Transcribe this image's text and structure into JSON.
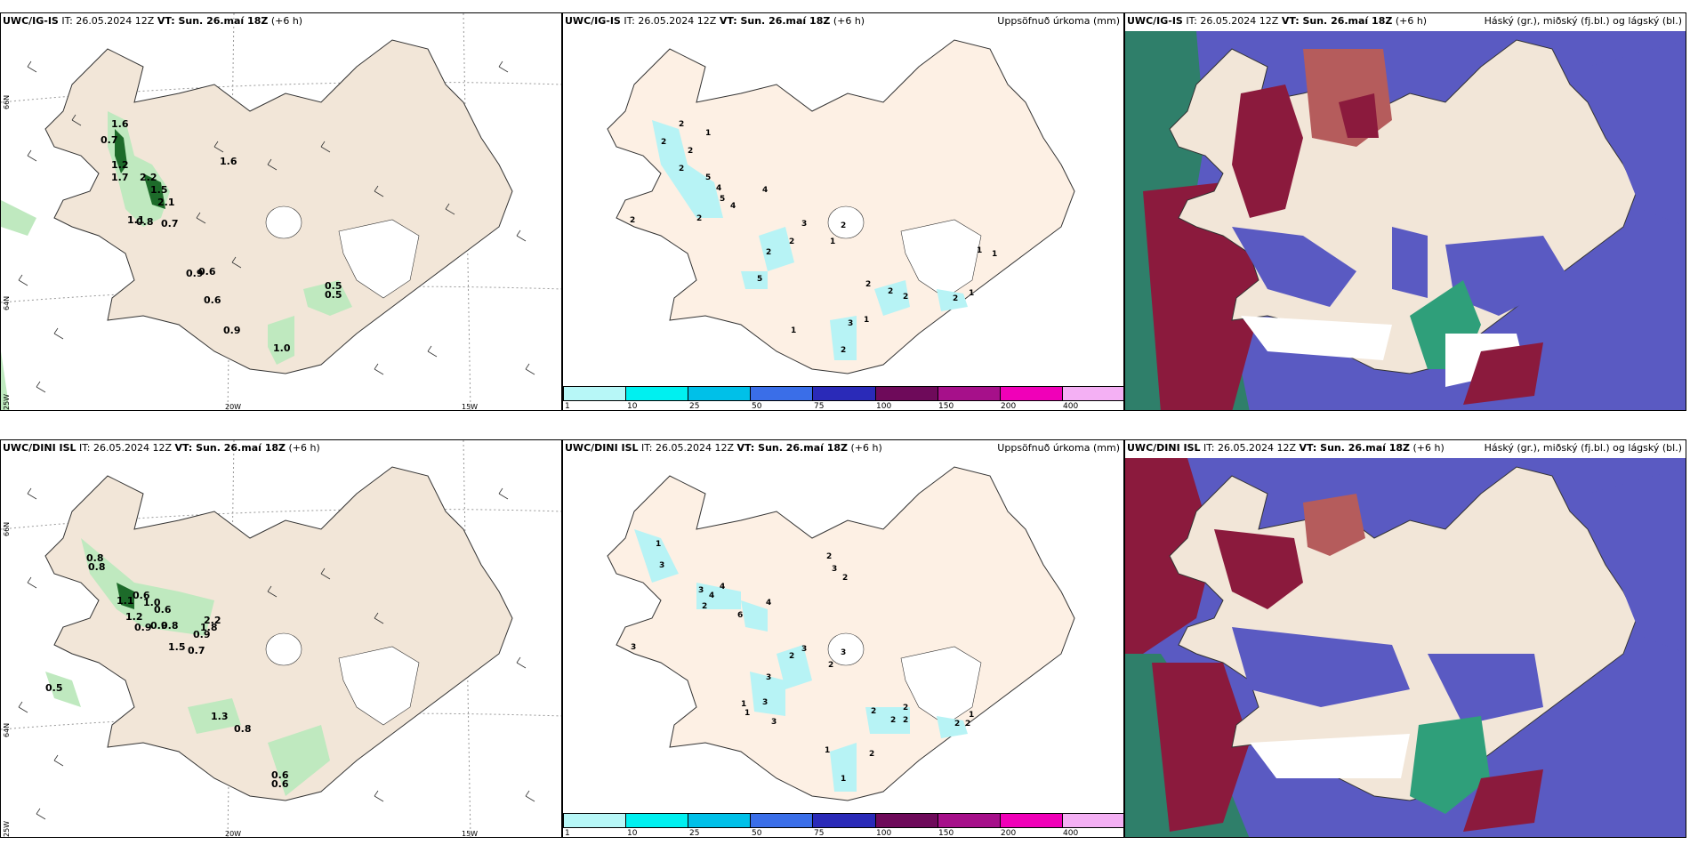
{
  "colors": {
    "land": "#f2e6d8",
    "land2": "#fdf0e4",
    "sea": "#ffffff",
    "precip": "#b7f3f5",
    "cloud_low": "#5a5ac2",
    "cloud_high": "#8b1a3d",
    "cloud_mid": "#b55c5c",
    "green_dark": "#1d6b2a",
    "green_light": "#bfe9bf",
    "teal": "#2f7f6a"
  },
  "rows": [
    {
      "model": "UWC/IG-IS",
      "it_label": "IT: 26.05.2024 12Z",
      "vt_label": "VT: Sun. 26.maí 18Z",
      "offset": "(+6 h)",
      "wind_labels": [
        "1.6",
        "0.7",
        "1.2",
        "1.7",
        "2.2",
        "1.5",
        "2.1",
        "1.6",
        "1.1",
        "0.8",
        "0.7",
        "0.9",
        "0.6",
        "0.6",
        "0.5",
        "0.5",
        "0.9",
        "1.0"
      ],
      "precip_labels": [
        "2",
        "1",
        "2",
        "2",
        "2",
        "5",
        "4",
        "4",
        "5",
        "4",
        "2",
        "2",
        "3",
        "2",
        "2",
        "1",
        "2",
        "1",
        "1",
        "5",
        "2",
        "2",
        "2",
        "1",
        "2",
        "1",
        "3",
        "1",
        "2"
      ]
    },
    {
      "model": "UWC/DINI ISL",
      "it_label": "IT: 26.05.2024 12Z",
      "vt_label": "VT: Sun. 26.maí 18Z",
      "offset": "(+6 h)",
      "wind_labels": [
        "0.8",
        "0.8",
        "1.1",
        "0.6",
        "1.0",
        "0.6",
        "1.2",
        "0.9",
        "0.9",
        "0.8",
        "2.2",
        "1.8",
        "0.9",
        "1.5",
        "0.7",
        "0.5",
        "1.3",
        "0.8",
        "0.6",
        "0.6"
      ],
      "precip_labels": [
        "1",
        "3",
        "3",
        "4",
        "4",
        "2",
        "6",
        "4",
        "3",
        "2",
        "3",
        "3",
        "2",
        "2",
        "3",
        "2",
        "3",
        "1",
        "1",
        "3",
        "3",
        "2",
        "2",
        "2",
        "2",
        "2",
        "1",
        "2",
        "1",
        "2",
        "1"
      ]
    }
  ],
  "precip_title": "Uppsöfnuð úrkoma (mm)",
  "cloud_title": "Háský (gr.), miðský (fj.bl.) og lágský (bl.)",
  "colorbar": {
    "ticks": [
      "1",
      "10",
      "25",
      "50",
      "75",
      "100",
      "150",
      "200",
      "400"
    ],
    "colors": [
      "#b7f7f7",
      "#00f0f0",
      "#00c0e8",
      "#3a6ee8",
      "#2a2ab8",
      "#6e0a5a",
      "#a6108a",
      "#f000b8",
      "#f4b0f4"
    ]
  },
  "grid": {
    "lon_labels": [
      "20W",
      "15W",
      "25W"
    ],
    "lat_labels": [
      "66N",
      "64N"
    ]
  }
}
